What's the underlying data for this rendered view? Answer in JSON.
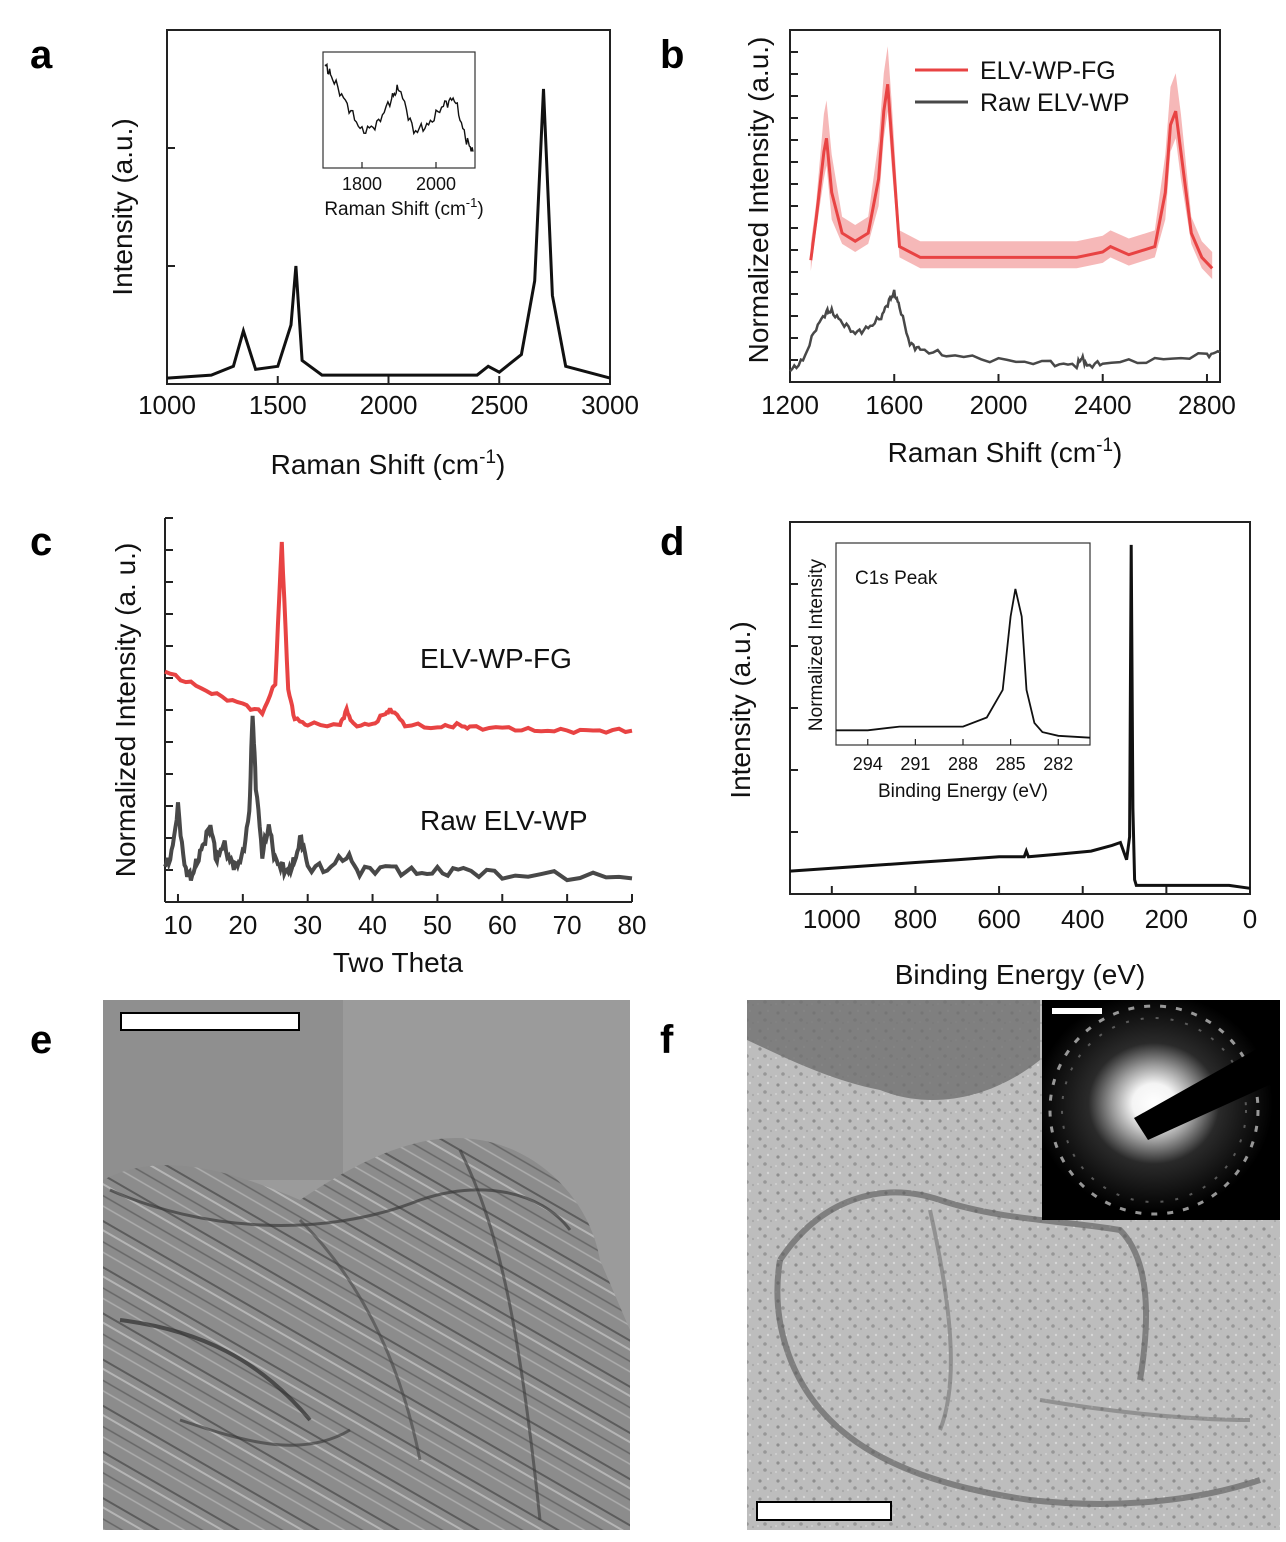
{
  "panels": {
    "a": {
      "label": "a",
      "xlabel": "Raman Shift (cm",
      "xlabel_sup": "-1",
      "xlabel_end": ")",
      "ylabel": "Intensity (a.u.)",
      "xticks": [
        "1000",
        "1500",
        "2000",
        "2500",
        "3000"
      ],
      "inset": {
        "xlabel": "Raman Shift (cm",
        "xlabel_sup": "-1",
        "xlabel_end": ")",
        "xticks": [
          "1800",
          "2000"
        ]
      }
    },
    "b": {
      "label": "b",
      "xlabel": "Raman Shift (cm",
      "xlabel_sup": "-1",
      "xlabel_end": ")",
      "ylabel": "Normalized Intensity (a.u.)",
      "xticks": [
        "1200",
        "1600",
        "2000",
        "2400",
        "2800"
      ],
      "legend": [
        "ELV-WP-FG",
        "Raw ELV-WP"
      ]
    },
    "c": {
      "label": "c",
      "xlabel": "Two Theta",
      "ylabel": "Normalized Intensity (a. u.)",
      "xticks": [
        "10",
        "20",
        "30",
        "40",
        "50",
        "60",
        "70",
        "80"
      ],
      "annotations": [
        "ELV-WP-FG",
        "Raw ELV-WP"
      ]
    },
    "d": {
      "label": "d",
      "xlabel": "Binding Energy (eV)",
      "ylabel": "Intensity (a.u.)",
      "xticks": [
        "1000",
        "800",
        "600",
        "400",
        "200",
        "0"
      ],
      "inset": {
        "title": "C1s Peak",
        "xlabel": "Binding Energy (eV)",
        "ylabel": "Normalized Intensity",
        "xticks": [
          "294",
          "291",
          "288",
          "285",
          "282"
        ]
      }
    },
    "e": {
      "label": "e"
    },
    "f": {
      "label": "f"
    }
  },
  "colors": {
    "fg": "#e84343",
    "fg_band": "#f3a0a0",
    "raw": "#484848",
    "black": "#111111"
  },
  "chart_data": [
    {
      "panel": "a",
      "type": "line",
      "xlim": [
        1000,
        3000
      ],
      "ylim": [
        0,
        1.2
      ],
      "series": [
        {
          "x": [
            1000,
            1200,
            1300,
            1345,
            1400,
            1500,
            1560,
            1582,
            1610,
            1700,
            2000,
            2400,
            2450,
            2500,
            2600,
            2660,
            2700,
            2740,
            2800,
            3000
          ],
          "y": [
            0.02,
            0.03,
            0.06,
            0.18,
            0.05,
            0.06,
            0.2,
            0.4,
            0.08,
            0.03,
            0.03,
            0.03,
            0.06,
            0.04,
            0.1,
            0.35,
            1.0,
            0.3,
            0.06,
            0.02
          ]
        }
      ],
      "inset": {
        "type": "line",
        "xlim": [
          1700,
          2100
        ],
        "series": [
          {
            "x": [
              1700,
              1720,
              1760,
              1800,
              1840,
              1880,
              1900,
              1940,
              1980,
              2020,
              2050,
              2080,
              2100
            ],
            "y": [
              0.95,
              0.85,
              0.65,
              0.45,
              0.5,
              0.7,
              0.78,
              0.45,
              0.5,
              0.65,
              0.7,
              0.4,
              0.3
            ]
          }
        ]
      }
    },
    {
      "panel": "b",
      "type": "line",
      "xlim": [
        1200,
        2850
      ],
      "ylim": [
        0,
        1.3
      ],
      "series": [
        {
          "name": "ELV-WP-FG",
          "x": [
            1280,
            1300,
            1330,
            1340,
            1360,
            1400,
            1450,
            1500,
            1540,
            1560,
            1575,
            1590,
            1620,
            1700,
            2000,
            2300,
            2400,
            2430,
            2500,
            2600,
            2640,
            2660,
            2680,
            2700,
            2740,
            2780,
            2820
          ],
          "y": [
            0.45,
            0.6,
            0.85,
            0.9,
            0.7,
            0.55,
            0.52,
            0.55,
            0.75,
            1.0,
            1.1,
            0.9,
            0.5,
            0.46,
            0.46,
            0.46,
            0.48,
            0.5,
            0.47,
            0.5,
            0.7,
            0.95,
            1.0,
            0.85,
            0.55,
            0.46,
            0.42
          ]
        },
        {
          "name": "Raw ELV-WP",
          "x": [
            1200,
            1250,
            1300,
            1340,
            1360,
            1400,
            1450,
            1500,
            1550,
            1580,
            1600,
            1620,
            1660,
            1700,
            1800,
            2000,
            2200,
            2300,
            2320,
            2340,
            2400,
            2600,
            2800,
            2850
          ],
          "y": [
            0.04,
            0.08,
            0.2,
            0.26,
            0.26,
            0.22,
            0.18,
            0.2,
            0.24,
            0.3,
            0.33,
            0.28,
            0.14,
            0.12,
            0.1,
            0.08,
            0.07,
            0.06,
            0.09,
            0.06,
            0.07,
            0.08,
            0.1,
            0.11
          ]
        }
      ]
    },
    {
      "panel": "c",
      "type": "line",
      "xlim": [
        8,
        80
      ],
      "ylim": [
        0,
        1.3
      ],
      "series": [
        {
          "name": "ELV-WP-FG",
          "x": [
            8,
            12,
            16,
            20,
            23,
            25,
            26,
            27,
            28,
            30,
            35,
            36,
            37,
            40,
            42,
            43,
            45,
            50,
            53,
            55,
            60,
            65,
            70,
            75,
            80
          ],
          "y": [
            0.78,
            0.74,
            0.7,
            0.67,
            0.64,
            0.74,
            1.22,
            0.72,
            0.62,
            0.6,
            0.6,
            0.65,
            0.6,
            0.6,
            0.64,
            0.65,
            0.6,
            0.59,
            0.6,
            0.59,
            0.59,
            0.58,
            0.58,
            0.58,
            0.58
          ]
        },
        {
          "name": "Raw ELV-WP",
          "x": [
            8,
            9,
            10,
            11,
            12,
            13,
            14,
            15,
            16,
            17,
            18,
            19,
            20,
            21,
            21.5,
            22,
            23,
            24,
            25,
            26,
            27,
            28,
            29,
            30,
            33,
            36,
            38,
            42,
            46,
            50,
            54,
            60,
            70,
            80
          ],
          "y": [
            0.12,
            0.16,
            0.32,
            0.12,
            0.08,
            0.14,
            0.2,
            0.26,
            0.14,
            0.2,
            0.14,
            0.12,
            0.16,
            0.3,
            0.64,
            0.4,
            0.16,
            0.26,
            0.14,
            0.12,
            0.1,
            0.14,
            0.22,
            0.12,
            0.11,
            0.16,
            0.1,
            0.12,
            0.1,
            0.1,
            0.11,
            0.09,
            0.09,
            0.08
          ]
        }
      ]
    },
    {
      "panel": "d",
      "type": "line",
      "xlim": [
        1100,
        0
      ],
      "ylim": [
        0,
        1.3
      ],
      "series": [
        {
          "x": [
            1100,
            1000,
            900,
            800,
            700,
            600,
            540,
            535,
            530,
            450,
            380,
            330,
            310,
            295,
            288,
            284,
            280,
            276,
            272,
            250,
            150,
            50,
            0
          ],
          "y": [
            0.08,
            0.09,
            0.1,
            0.11,
            0.12,
            0.13,
            0.13,
            0.15,
            0.13,
            0.14,
            0.15,
            0.17,
            0.18,
            0.12,
            0.2,
            1.22,
            0.3,
            0.05,
            0.03,
            0.03,
            0.03,
            0.03,
            0.02
          ]
        }
      ],
      "inset": {
        "title": "C1s Peak",
        "type": "line",
        "xlim": [
          296,
          280
        ],
        "ylim": [
          0,
          1.1
        ],
        "series": [
          {
            "x": [
              296,
              294,
              292,
              290,
              288,
              286.5,
              285.5,
              285,
              284.7,
              284.3,
              284,
              283.5,
              283,
              282,
              280
            ],
            "y": [
              0.08,
              0.08,
              0.1,
              0.1,
              0.1,
              0.15,
              0.3,
              0.7,
              0.85,
              0.7,
              0.3,
              0.12,
              0.07,
              0.05,
              0.04
            ]
          }
        ]
      }
    }
  ]
}
